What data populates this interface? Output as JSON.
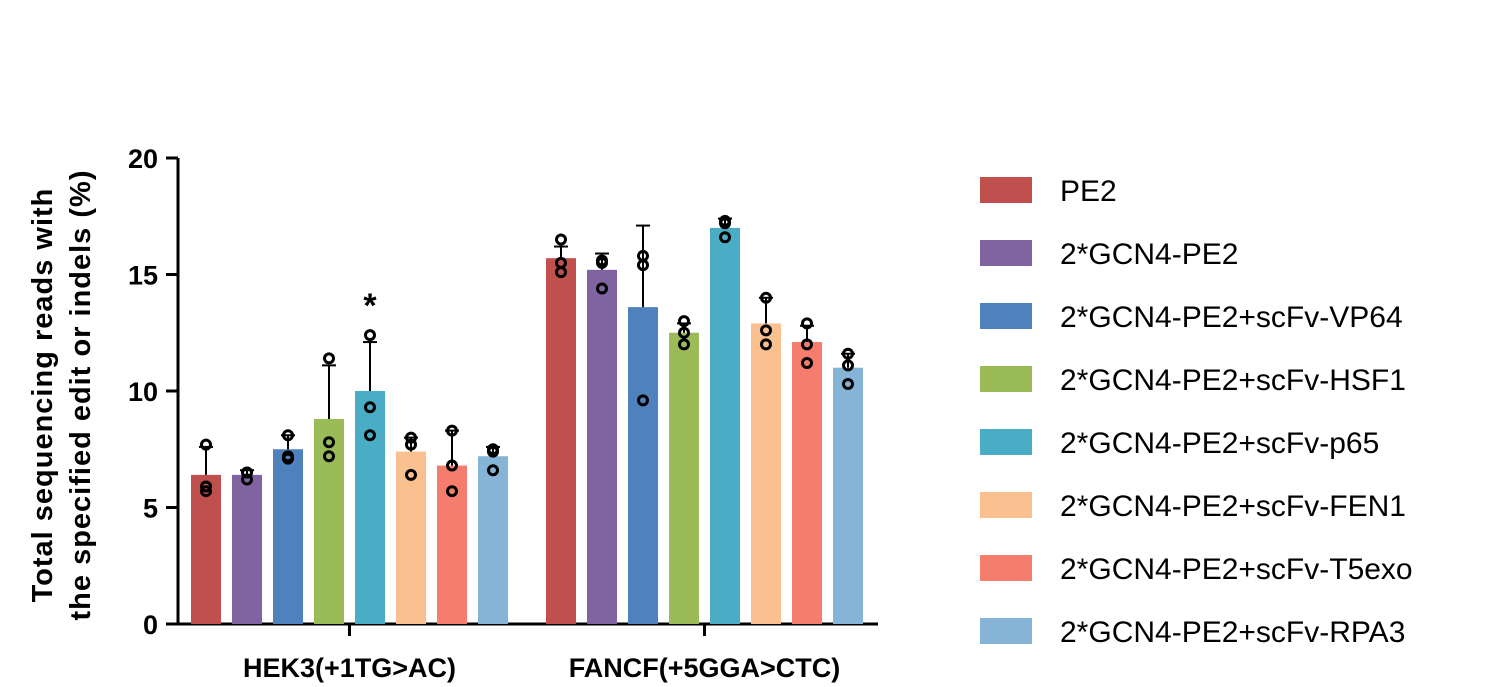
{
  "chart_data": {
    "type": "bar",
    "categories": [
      "HEK3(+1TG>AC)",
      "FANCF(+5GGA>CTC)"
    ],
    "ylabel_line1": "Total sequencing reads with",
    "ylabel_line2": "the specified edit or indels (%)",
    "ylim": [
      0,
      20
    ],
    "yticks": [
      0,
      5,
      10,
      15,
      20
    ],
    "grid": false,
    "legend_position": "right",
    "series": [
      {
        "name": "PE2",
        "color": "#c0504d",
        "values": [
          6.4,
          15.7
        ],
        "errors": [
          1.2,
          0.5
        ],
        "points": [
          [
            7.7,
            5.9,
            5.7
          ],
          [
            16.5,
            15.5,
            15.1
          ]
        ]
      },
      {
        "name": "2*GCN4-PE2",
        "color": "#8064a2",
        "values": [
          6.4,
          15.2
        ],
        "errors": [
          0.2,
          0.7
        ],
        "points": [
          [
            6.5,
            6.5,
            6.2
          ],
          [
            15.6,
            15.5,
            14.4
          ]
        ]
      },
      {
        "name": "2*GCN4-PE2+scFv-VP64",
        "color": "#4f81bd",
        "values": [
          7.5,
          13.6
        ],
        "errors": [
          0.6,
          3.5
        ],
        "points": [
          [
            8.1,
            7.2,
            7.1
          ],
          [
            15.8,
            15.4,
            9.6
          ]
        ]
      },
      {
        "name": "2*GCN4-PE2+scFv-HSF1",
        "color": "#9bbb59",
        "values": [
          8.8,
          12.5
        ],
        "errors": [
          2.3,
          0.4
        ],
        "points": [
          [
            11.4,
            7.8,
            7.2
          ],
          [
            13.0,
            12.5,
            12.0
          ]
        ]
      },
      {
        "name": "2*GCN4-PE2+scFv-p65",
        "color": "#4bacc6",
        "values": [
          10.0,
          17.0
        ],
        "errors": [
          2.1,
          0.4
        ],
        "points": [
          [
            12.4,
            9.3,
            8.1
          ],
          [
            17.3,
            17.2,
            16.6
          ]
        ]
      },
      {
        "name": "2*GCN4-PE2+scFv-FEN1",
        "color": "#fac08f",
        "values": [
          7.4,
          12.9
        ],
        "errors": [
          0.6,
          1.1
        ],
        "points": [
          [
            8.0,
            7.7,
            6.4
          ],
          [
            14.0,
            12.6,
            12.0
          ]
        ]
      },
      {
        "name": "2*GCN4-PE2+scFv-T5exo",
        "color": "#f47d6e",
        "values": [
          6.8,
          12.1
        ],
        "errors": [
          1.5,
          0.7
        ],
        "points": [
          [
            8.3,
            6.8,
            5.7
          ],
          [
            12.9,
            12.0,
            11.2
          ]
        ]
      },
      {
        "name": "2*GCN4-PE2+scFv-RPA3",
        "color": "#86b4d6",
        "values": [
          7.2,
          11.0
        ],
        "errors": [
          0.4,
          0.6
        ],
        "points": [
          [
            7.5,
            7.4,
            6.6
          ],
          [
            11.6,
            11.1,
            10.3
          ]
        ]
      }
    ],
    "annotations": [
      {
        "text": "*",
        "category": 0,
        "series": 4
      }
    ]
  }
}
